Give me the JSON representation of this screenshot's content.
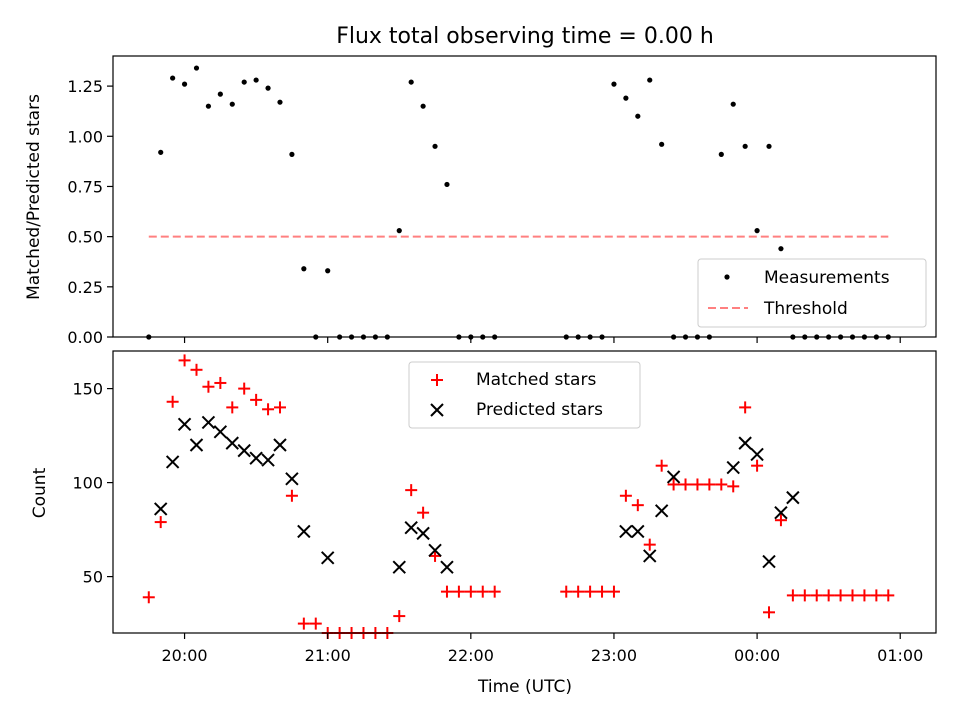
{
  "figure": {
    "title": "Flux total observing time = 0.00 h",
    "x_axis_label": "Time (UTC)",
    "x_ticks": [
      "20:00",
      "21:00",
      "22:00",
      "23:00",
      "00:00",
      "01:00"
    ]
  },
  "chart_data": [
    {
      "type": "scatter",
      "ylabel": "Matched/Predicted stars",
      "ylim": [
        0,
        1.4
      ],
      "y_ticks": [
        "0.00",
        "0.25",
        "0.50",
        "0.75",
        "1.00",
        "1.25"
      ],
      "legend": {
        "placement": "lower-right",
        "entries": [
          "Measurements",
          "Threshold"
        ]
      },
      "series": [
        {
          "name": "Measurements",
          "color": "#000000",
          "marker": "dot",
          "x": [
            "19:45",
            "19:50",
            "19:55",
            "20:00",
            "20:05",
            "20:10",
            "20:15",
            "20:20",
            "20:25",
            "20:30",
            "20:35",
            "20:40",
            "20:45",
            "20:50",
            "20:55",
            "21:00",
            "21:05",
            "21:10",
            "21:15",
            "21:20",
            "21:25",
            "21:30",
            "21:35",
            "21:40",
            "21:45",
            "21:50",
            "21:55",
            "22:00",
            "22:05",
            "22:10",
            "22:40",
            "22:45",
            "22:50",
            "22:55",
            "23:00",
            "23:05",
            "23:10",
            "23:15",
            "23:20",
            "23:25",
            "23:30",
            "23:35",
            "23:40",
            "23:45",
            "23:50",
            "23:55",
            "00:00",
            "00:05",
            "00:10",
            "00:15",
            "00:20",
            "00:25",
            "00:30",
            "00:35",
            "00:40",
            "00:45",
            "00:50",
            "00:55"
          ],
          "y": [
            0.0,
            0.92,
            1.29,
            1.26,
            1.34,
            1.15,
            1.21,
            1.16,
            1.27,
            1.28,
            1.24,
            1.17,
            0.91,
            0.34,
            0.0,
            0.33,
            0.0,
            0.0,
            0.0,
            0.0,
            0.0,
            0.53,
            1.27,
            1.15,
            0.95,
            0.76,
            0.0,
            0.0,
            0.0,
            0.0,
            0.0,
            0.0,
            0.0,
            0.0,
            1.26,
            1.19,
            1.1,
            1.28,
            0.96,
            0.0,
            0.0,
            0.0,
            0.0,
            0.91,
            1.16,
            0.95,
            0.53,
            0.95,
            0.44,
            0.0,
            0.0,
            0.0,
            0.0,
            0.0,
            0.0,
            0.0,
            0.0,
            0.0
          ]
        },
        {
          "name": "Threshold",
          "color": "#ff8080",
          "style": "dashed",
          "x": [
            "19:45",
            "00:55"
          ],
          "y": [
            0.5,
            0.5
          ]
        }
      ]
    },
    {
      "type": "scatter",
      "ylabel": "Count",
      "ylim": [
        20,
        170
      ],
      "y_ticks": [
        "50",
        "100",
        "150"
      ],
      "legend": {
        "placement": "upper-center",
        "entries": [
          "Matched stars",
          "Predicted stars"
        ]
      },
      "series": [
        {
          "name": "Matched stars",
          "color": "#ff0000",
          "marker": "plus",
          "x": [
            "19:45",
            "19:50",
            "19:55",
            "20:00",
            "20:05",
            "20:10",
            "20:15",
            "20:20",
            "20:25",
            "20:30",
            "20:35",
            "20:40",
            "20:45",
            "20:50",
            "20:55",
            "21:00",
            "21:05",
            "21:10",
            "21:15",
            "21:20",
            "21:25",
            "21:30",
            "21:35",
            "21:40",
            "21:45",
            "21:50",
            "21:55",
            "22:00",
            "22:05",
            "22:10",
            "22:40",
            "22:45",
            "22:50",
            "22:55",
            "23:00",
            "23:05",
            "23:10",
            "23:15",
            "23:20",
            "23:25",
            "23:30",
            "23:35",
            "23:40",
            "23:45",
            "23:50",
            "23:55",
            "00:00",
            "00:05",
            "00:10",
            "00:15",
            "00:20",
            "00:25",
            "00:30",
            "00:35",
            "00:40",
            "00:45",
            "00:50",
            "00:55"
          ],
          "y": [
            39,
            79,
            143,
            165,
            160,
            151,
            153,
            140,
            150,
            144,
            139,
            140,
            93,
            25,
            25,
            20,
            20,
            20,
            20,
            20,
            20,
            29,
            96,
            84,
            61,
            42,
            42,
            42,
            42,
            42,
            42,
            42,
            42,
            42,
            42,
            93,
            88,
            67,
            109,
            99,
            99,
            99,
            99,
            99,
            98,
            140,
            109,
            31,
            80,
            40,
            40,
            40,
            40,
            40,
            40,
            40,
            40,
            40
          ]
        },
        {
          "name": "Predicted stars",
          "color": "#000000",
          "marker": "x",
          "x": [
            "19:50",
            "19:55",
            "20:00",
            "20:05",
            "20:10",
            "20:15",
            "20:20",
            "20:25",
            "20:30",
            "20:35",
            "20:40",
            "20:45",
            "20:50",
            "21:00",
            "21:30",
            "21:35",
            "21:40",
            "21:45",
            "21:50",
            "23:05",
            "23:10",
            "23:15",
            "23:20",
            "23:25",
            "23:50",
            "23:55",
            "00:00",
            "00:05",
            "00:10",
            "00:15"
          ],
          "y": [
            86,
            111,
            131,
            120,
            132,
            127,
            121,
            117,
            113,
            112,
            120,
            102,
            74,
            60,
            55,
            76,
            73,
            64,
            55,
            74,
            74,
            61,
            85,
            103,
            108,
            121,
            115,
            58,
            84,
            92
          ]
        }
      ]
    }
  ]
}
